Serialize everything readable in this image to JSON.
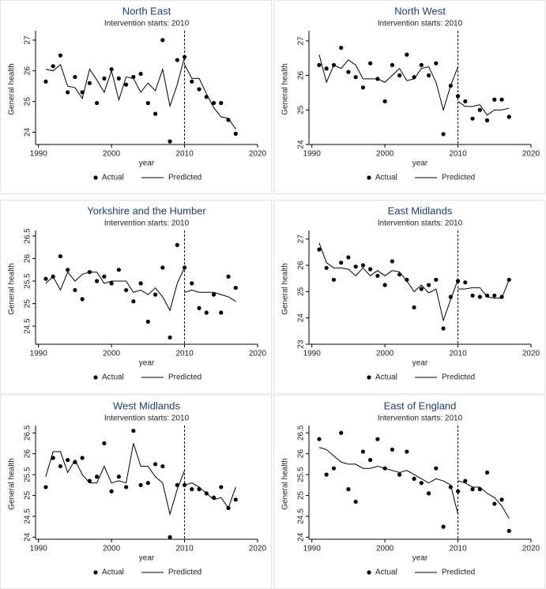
{
  "chart_data": [
    {
      "type": "scatter",
      "title": "North East",
      "subtitle": "Intervention starts: 2010",
      "xlabel": "year",
      "ylabel": "General health",
      "xlim": [
        1989.6,
        2020
      ],
      "xticks": [
        1990,
        2000,
        2010,
        2020
      ],
      "ylim": [
        23.6,
        27.2
      ],
      "yticks": [
        24,
        25,
        26,
        27
      ],
      "vline": 2010,
      "series": [
        {
          "name": "Actual",
          "style": "markers",
          "color": "#000000",
          "x": [
            1991,
            1992,
            1993,
            1994,
            1995,
            1996,
            1997,
            1998,
            1999,
            2000,
            2001,
            2002,
            2003,
            2004,
            2005,
            2006,
            2007,
            2008,
            2009,
            2010,
            2011,
            2012,
            2013,
            2014,
            2015,
            2016,
            2017
          ],
          "values": [
            25.65,
            26.15,
            26.5,
            25.3,
            25.8,
            25.3,
            25.6,
            24.95,
            25.75,
            26.05,
            25.75,
            25.55,
            25.8,
            25.9,
            24.95,
            24.6,
            27.0,
            23.7,
            26.35,
            26.45,
            25.65,
            25.4,
            25.15,
            24.95,
            24.95,
            24.4,
            23.95
          ]
        },
        {
          "name": "Predicted",
          "style": "line",
          "color": "#000000",
          "x": [
            1991,
            1992,
            1993,
            1994,
            1995,
            1996,
            1997,
            1998,
            1999,
            2000,
            2001,
            2002,
            2003,
            2004,
            2005,
            2006,
            2007,
            2008,
            2009,
            2010,
            2010,
            2010,
            2011,
            2012,
            2013,
            2014,
            2015,
            2016,
            2017
          ],
          "values": [
            26.05,
            26.0,
            26.2,
            25.5,
            25.45,
            25.1,
            26.05,
            25.7,
            25.3,
            26.0,
            25.05,
            25.8,
            25.75,
            25.3,
            25.6,
            25.35,
            26.05,
            24.85,
            25.55,
            26.45,
            null,
            26.2,
            25.75,
            25.75,
            25.25,
            24.8,
            24.5,
            24.45,
            24.1
          ]
        }
      ]
    },
    {
      "type": "scatter",
      "title": "North West",
      "subtitle": "Intervention starts: 2010",
      "xlabel": "year",
      "ylabel": "General health",
      "xlim": [
        1989.6,
        2020
      ],
      "xticks": [
        1990,
        2000,
        2010,
        2020
      ],
      "ylim": [
        24,
        27.2
      ],
      "yticks": [
        24,
        25,
        26,
        27
      ],
      "vline": 2010,
      "series": [
        {
          "name": "Actual",
          "style": "markers",
          "color": "#000000",
          "x": [
            1991,
            1992,
            1993,
            1994,
            1995,
            1996,
            1997,
            1998,
            1999,
            2000,
            2001,
            2002,
            2003,
            2004,
            2005,
            2006,
            2007,
            2008,
            2009,
            2010,
            2011,
            2012,
            2013,
            2014,
            2015,
            2016,
            2017
          ],
          "values": [
            26.3,
            26.2,
            26.3,
            26.8,
            26.1,
            25.95,
            25.65,
            26.35,
            25.9,
            25.25,
            26.3,
            26.0,
            26.6,
            25.95,
            26.3,
            26.0,
            26.35,
            24.3,
            25.7,
            25.4,
            25.25,
            24.75,
            25.0,
            24.7,
            25.3,
            25.3,
            24.8
          ]
        },
        {
          "name": "Predicted",
          "style": "line",
          "color": "#000000",
          "x": [
            1991,
            1992,
            1993,
            1994,
            1995,
            1996,
            1997,
            1998,
            1999,
            2000,
            2001,
            2002,
            2003,
            2004,
            2005,
            2006,
            2007,
            2008,
            2009,
            2010,
            2010,
            2010,
            2011,
            2012,
            2013,
            2014,
            2015,
            2016,
            2017
          ],
          "values": [
            26.6,
            25.8,
            26.3,
            26.2,
            26.45,
            26.3,
            25.9,
            25.9,
            25.9,
            25.8,
            26.0,
            26.2,
            25.85,
            25.9,
            26.2,
            26.25,
            25.8,
            25.0,
            25.7,
            26.25,
            null,
            25.25,
            25.1,
            25.1,
            25.15,
            24.85,
            25.0,
            25.0,
            25.05
          ]
        }
      ]
    },
    {
      "type": "scatter",
      "title": "Yorkshire and the Humber",
      "subtitle": "Intervention starts: 2010",
      "xlabel": "year",
      "ylabel": "General health",
      "xlim": [
        1989.6,
        2020
      ],
      "xticks": [
        1990,
        2000,
        2010,
        2020
      ],
      "ylim": [
        24.1,
        26.55
      ],
      "yticks": [
        24.5,
        25,
        25.5,
        26,
        26.5
      ],
      "vline": 2010,
      "series": [
        {
          "name": "Actual",
          "style": "markers",
          "color": "#000000",
          "x": [
            1991,
            1992,
            1993,
            1994,
            1995,
            1996,
            1997,
            1998,
            1999,
            2000,
            2001,
            2002,
            2003,
            2004,
            2005,
            2006,
            2007,
            2008,
            2009,
            2010,
            2011,
            2012,
            2013,
            2014,
            2015,
            2016,
            2017
          ],
          "values": [
            25.55,
            25.6,
            26.05,
            25.75,
            25.3,
            25.1,
            25.7,
            25.5,
            25.6,
            25.45,
            25.75,
            25.3,
            25.05,
            25.45,
            24.6,
            25.2,
            25.8,
            24.25,
            26.3,
            25.8,
            25.45,
            24.9,
            24.8,
            25.2,
            24.8,
            25.6,
            25.35
          ]
        },
        {
          "name": "Predicted",
          "style": "line",
          "color": "#000000",
          "x": [
            1991,
            1992,
            1993,
            1994,
            1995,
            1996,
            1997,
            1998,
            1999,
            2000,
            2001,
            2002,
            2003,
            2004,
            2005,
            2006,
            2007,
            2008,
            2009,
            2010,
            2010,
            2010,
            2011,
            2012,
            2013,
            2014,
            2015,
            2016,
            2017
          ],
          "values": [
            25.45,
            25.6,
            25.3,
            25.7,
            25.5,
            25.65,
            25.7,
            25.7,
            25.45,
            25.5,
            25.5,
            25.5,
            25.25,
            25.3,
            25.2,
            25.35,
            25.15,
            24.85,
            25.45,
            25.8,
            null,
            25.25,
            25.3,
            25.25,
            25.25,
            25.25,
            25.2,
            25.15,
            25.05
          ]
        }
      ]
    },
    {
      "type": "scatter",
      "title": "East Midlands",
      "subtitle": "Intervention starts: 2010",
      "xlabel": "year",
      "ylabel": "General health",
      "xlim": [
        1989.6,
        2020
      ],
      "xticks": [
        1990,
        2000,
        2010,
        2020
      ],
      "ylim": [
        23,
        27.2
      ],
      "yticks": [
        23,
        24,
        25,
        26,
        27
      ],
      "vline": 2010,
      "series": [
        {
          "name": "Actual",
          "style": "markers",
          "color": "#000000",
          "x": [
            1991,
            1992,
            1993,
            1994,
            1995,
            1996,
            1997,
            1998,
            1999,
            2000,
            2001,
            2002,
            2003,
            2004,
            2005,
            2006,
            2007,
            2008,
            2009,
            2010,
            2011,
            2012,
            2013,
            2014,
            2015,
            2016,
            2017
          ],
          "values": [
            26.6,
            25.9,
            25.45,
            26.1,
            26.3,
            25.95,
            26.0,
            25.85,
            25.6,
            25.25,
            26.15,
            25.65,
            25.45,
            24.4,
            25.1,
            25.25,
            25.45,
            23.6,
            24.8,
            25.4,
            25.35,
            24.85,
            24.8,
            24.85,
            24.85,
            24.8,
            25.45
          ]
        },
        {
          "name": "Predicted",
          "style": "line",
          "color": "#000000",
          "x": [
            1991,
            1992,
            1993,
            1994,
            1995,
            1996,
            1997,
            1998,
            1999,
            2000,
            2001,
            2002,
            2003,
            2004,
            2005,
            2006,
            2007,
            2008,
            2009,
            2010,
            2010,
            2010,
            2011,
            2012,
            2013,
            2014,
            2015,
            2016,
            2017
          ],
          "values": [
            26.85,
            26.1,
            25.9,
            25.9,
            25.85,
            25.6,
            25.9,
            25.6,
            25.8,
            25.6,
            25.8,
            25.75,
            25.4,
            25.0,
            25.25,
            24.95,
            25.1,
            23.9,
            24.7,
            25.45,
            null,
            25.1,
            25.1,
            25.15,
            25.15,
            24.8,
            24.75,
            24.75,
            25.45
          ]
        }
      ]
    },
    {
      "type": "scatter",
      "title": "West Midlands",
      "subtitle": "Intervention starts: 2010",
      "xlabel": "year",
      "ylabel": "General health",
      "xlim": [
        1989.6,
        2020
      ],
      "xticks": [
        1990,
        2000,
        2010,
        2020
      ],
      "ylim": [
        23.95,
        26.6
      ],
      "yticks": [
        24,
        24.5,
        25,
        25.5,
        26,
        26.5
      ],
      "vline": 2010,
      "series": [
        {
          "name": "Actual",
          "style": "markers",
          "color": "#000000",
          "x": [
            1991,
            1992,
            1993,
            1994,
            1995,
            1996,
            1997,
            1998,
            1999,
            2000,
            2001,
            2002,
            2003,
            2004,
            2005,
            2006,
            2007,
            2008,
            2009,
            2010,
            2011,
            2012,
            2013,
            2014,
            2015,
            2016,
            2017
          ],
          "values": [
            25.2,
            25.9,
            25.7,
            25.85,
            25.8,
            25.9,
            25.35,
            25.45,
            26.25,
            25.1,
            25.45,
            25.2,
            26.55,
            25.25,
            25.3,
            25.75,
            25.7,
            24.0,
            25.25,
            25.25,
            25.15,
            25.15,
            25.05,
            24.95,
            25.2,
            24.7,
            24.9
          ]
        },
        {
          "name": "Predicted",
          "style": "line",
          "color": "#000000",
          "x": [
            1991,
            1992,
            1993,
            1994,
            1995,
            1996,
            1997,
            1998,
            1999,
            2000,
            2001,
            2002,
            2003,
            2004,
            2005,
            2006,
            2007,
            2008,
            2009,
            2010,
            2010,
            2010,
            2011,
            2012,
            2013,
            2014,
            2015,
            2016,
            2017
          ],
          "values": [
            25.45,
            26.05,
            26.05,
            25.55,
            25.85,
            25.5,
            25.3,
            25.3,
            25.7,
            25.3,
            25.35,
            25.3,
            26.25,
            25.7,
            25.7,
            25.45,
            25.3,
            24.55,
            25.15,
            25.6,
            null,
            25.25,
            25.3,
            25.2,
            25.05,
            24.9,
            24.95,
            24.7,
            25.2
          ]
        }
      ]
    },
    {
      "type": "scatter",
      "title": "East of England",
      "subtitle": "Intervention starts: 2010",
      "xlabel": "year",
      "ylabel": "General health",
      "xlim": [
        1989.6,
        2020
      ],
      "xticks": [
        1990,
        2000,
        2010,
        2020
      ],
      "ylim": [
        23.95,
        26.6
      ],
      "yticks": [
        24,
        24.5,
        25,
        25.5,
        26,
        26.5
      ],
      "vline": 2010,
      "series": [
        {
          "name": "Actual",
          "style": "markers",
          "color": "#000000",
          "x": [
            1991,
            1992,
            1993,
            1994,
            1995,
            1996,
            1997,
            1998,
            1999,
            2000,
            2001,
            2002,
            2003,
            2004,
            2005,
            2006,
            2007,
            2008,
            2009,
            2010,
            2011,
            2012,
            2013,
            2014,
            2015,
            2016,
            2017
          ],
          "values": [
            26.35,
            25.5,
            25.65,
            26.5,
            25.15,
            24.85,
            26.05,
            25.85,
            26.35,
            25.65,
            26.1,
            25.5,
            26.05,
            25.4,
            25.3,
            25.05,
            25.65,
            24.25,
            25.2,
            25.1,
            25.35,
            25.15,
            25.15,
            25.55,
            24.8,
            24.9,
            24.15
          ]
        },
        {
          "name": "Predicted",
          "style": "line",
          "color": "#000000",
          "x": [
            1991,
            1992,
            1993,
            1994,
            1995,
            1996,
            1997,
            1998,
            1999,
            2000,
            2001,
            2002,
            2003,
            2004,
            2005,
            2006,
            2007,
            2008,
            2009,
            2010,
            2010,
            2010,
            2011,
            2012,
            2013,
            2014,
            2015,
            2016,
            2017
          ],
          "values": [
            26.15,
            26.1,
            25.95,
            25.8,
            25.75,
            25.75,
            25.65,
            25.65,
            25.7,
            25.65,
            25.6,
            25.55,
            25.6,
            25.5,
            25.4,
            25.3,
            25.4,
            25.35,
            25.25,
            24.55,
            null,
            25.35,
            25.3,
            25.2,
            25.2,
            25.05,
            24.95,
            24.75,
            24.45
          ]
        }
      ]
    }
  ]
}
